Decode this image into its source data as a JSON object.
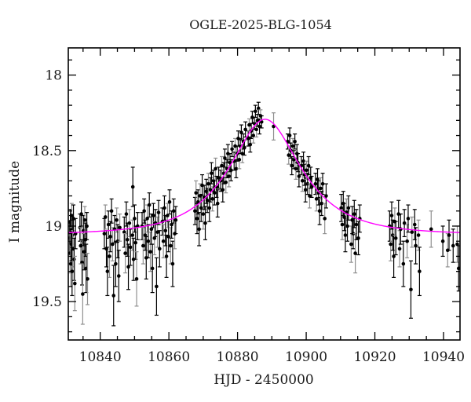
{
  "chart_data": {
    "type": "scatter",
    "title": "OGLE-2025-BLG-1054",
    "xlabel": "HJD - 2450000",
    "ylabel": "I magnitude",
    "x_range": [
      10830.7,
      10944.8
    ],
    "y_range_mag": [
      17.82,
      19.754
    ],
    "y_axis_inverted": true,
    "x_major_ticks": [
      10840,
      10860,
      10880,
      10900,
      10920,
      10940
    ],
    "x_minor_step": 5,
    "y_major_ticks": [
      18,
      18.5,
      19,
      19.5
    ],
    "y_minor_step": 0.1,
    "grid": false,
    "legend": null,
    "frame_color": "#000000",
    "marker_color": "#000000",
    "error_bar_colors": [
      "#000000",
      "#8f8f8f"
    ],
    "model_curve": {
      "type": "paczynski",
      "t0": 10888.0,
      "tE": 17.1,
      "u0": 0.55,
      "baseline_mag": 19.055,
      "peak_mag": 18.3,
      "color": "#ff00ff"
    },
    "points": [
      [
        10831.1,
        19.08,
        0.1,
        0
      ],
      [
        10831.2,
        19.18,
        0.13,
        1
      ],
      [
        10831.3,
        18.97,
        0.08,
        0
      ],
      [
        10831.4,
        19.25,
        0.15,
        1
      ],
      [
        10831.5,
        19.02,
        0.09,
        0
      ],
      [
        10831.6,
        19.12,
        0.11,
        0
      ],
      [
        10831.7,
        18.93,
        0.08,
        1
      ],
      [
        10831.8,
        19.3,
        0.16,
        0
      ],
      [
        10831.9,
        19.06,
        0.1,
        0
      ],
      [
        10832.0,
        19.15,
        0.12,
        1
      ],
      [
        10832.2,
        18.95,
        0.09,
        0
      ],
      [
        10832.4,
        19.22,
        0.14,
        0
      ],
      [
        10832.6,
        19.38,
        0.18,
        1
      ],
      [
        10832.8,
        19.05,
        0.1,
        0
      ],
      [
        10834.1,
        19.01,
        0.09,
        0
      ],
      [
        10834.3,
        19.13,
        0.12,
        1
      ],
      [
        10834.5,
        18.92,
        0.08,
        0
      ],
      [
        10834.7,
        19.24,
        0.15,
        0
      ],
      [
        10834.9,
        19.45,
        0.2,
        1
      ],
      [
        10835.1,
        19.03,
        0.1,
        0
      ],
      [
        10835.3,
        19.17,
        0.12,
        0
      ],
      [
        10835.5,
        18.96,
        0.09,
        1
      ],
      [
        10835.7,
        19.09,
        0.11,
        0
      ],
      [
        10835.9,
        19.28,
        0.16,
        0
      ],
      [
        10836.1,
        19.0,
        0.09,
        0
      ],
      [
        10836.3,
        19.35,
        0.17,
        1
      ],
      [
        10841.2,
        19.05,
        0.1,
        0
      ],
      [
        10841.5,
        18.94,
        0.08,
        1
      ],
      [
        10841.8,
        19.15,
        0.12,
        0
      ],
      [
        10842.1,
        19.3,
        0.16,
        0
      ],
      [
        10842.4,
        18.99,
        0.09,
        0
      ],
      [
        10842.7,
        19.2,
        0.14,
        1
      ],
      [
        10843.0,
        19.07,
        0.1,
        0
      ],
      [
        10843.3,
        18.9,
        0.08,
        0
      ],
      [
        10843.6,
        19.12,
        0.11,
        1
      ],
      [
        10843.9,
        19.46,
        0.2,
        0
      ],
      [
        10844.2,
        19.02,
        0.09,
        0
      ],
      [
        10844.5,
        19.25,
        0.15,
        0
      ],
      [
        10844.8,
        18.96,
        0.08,
        1
      ],
      [
        10845.1,
        19.1,
        0.11,
        0
      ],
      [
        10845.4,
        19.33,
        0.17,
        0
      ],
      [
        10845.7,
        19.01,
        0.09,
        1
      ],
      [
        10847.0,
        19.04,
        0.1,
        0
      ],
      [
        10847.3,
        19.18,
        0.13,
        1
      ],
      [
        10847.6,
        18.92,
        0.08,
        0
      ],
      [
        10847.9,
        19.09,
        0.11,
        0
      ],
      [
        10848.2,
        19.27,
        0.15,
        0
      ],
      [
        10848.5,
        18.98,
        0.09,
        1
      ],
      [
        10848.8,
        19.14,
        0.12,
        0
      ],
      [
        10849.5,
        18.74,
        0.13,
        0
      ],
      [
        10849.4,
        19.06,
        0.1,
        1
      ],
      [
        10849.7,
        19.22,
        0.14,
        0
      ],
      [
        10850.0,
        18.95,
        0.09,
        0
      ],
      [
        10850.3,
        19.11,
        0.11,
        0
      ],
      [
        10850.6,
        19.35,
        0.18,
        1
      ],
      [
        10850.9,
        19.0,
        0.09,
        0
      ],
      [
        10852.2,
        19.0,
        0.09,
        0
      ],
      [
        10852.5,
        19.13,
        0.12,
        1
      ],
      [
        10852.8,
        18.9,
        0.08,
        0
      ],
      [
        10853.1,
        19.06,
        0.1,
        0
      ],
      [
        10853.4,
        19.21,
        0.14,
        0
      ],
      [
        10853.7,
        18.95,
        0.09,
        1
      ],
      [
        10854.0,
        19.1,
        0.11,
        0
      ],
      [
        10854.3,
        18.86,
        0.08,
        0
      ],
      [
        10854.6,
        19.17,
        0.13,
        1
      ],
      [
        10854.9,
        19.02,
        0.1,
        0
      ],
      [
        10855.2,
        19.28,
        0.16,
        0
      ],
      [
        10855.5,
        18.93,
        0.08,
        0
      ],
      [
        10855.8,
        19.08,
        0.11,
        1
      ],
      [
        10856.1,
        18.98,
        0.09,
        0
      ],
      [
        10856.4,
        19.4,
        0.19,
        0
      ],
      [
        10856.7,
        19.04,
        0.1,
        1
      ],
      [
        10857.0,
        18.91,
        0.08,
        0
      ],
      [
        10857.3,
        19.15,
        0.12,
        0
      ],
      [
        10858.1,
        18.97,
        0.09,
        0
      ],
      [
        10858.4,
        19.1,
        0.11,
        1
      ],
      [
        10858.7,
        18.88,
        0.08,
        0
      ],
      [
        10859.0,
        19.03,
        0.1,
        0
      ],
      [
        10859.3,
        19.2,
        0.14,
        0
      ],
      [
        10859.6,
        18.93,
        0.08,
        1
      ],
      [
        10859.9,
        19.07,
        0.1,
        0
      ],
      [
        10860.2,
        18.84,
        0.08,
        0
      ],
      [
        10860.5,
        19.13,
        0.12,
        1
      ],
      [
        10860.8,
        18.99,
        0.09,
        0
      ],
      [
        10861.1,
        19.25,
        0.15,
        0
      ],
      [
        10861.4,
        18.9,
        0.08,
        0
      ],
      [
        10861.7,
        19.05,
        0.1,
        1
      ],
      [
        10862.0,
        18.96,
        0.09,
        0
      ],
      [
        10867.6,
        18.9,
        0.09,
        0
      ],
      [
        10867.9,
        18.78,
        0.08,
        1
      ],
      [
        10868.2,
        18.95,
        0.1,
        0
      ],
      [
        10868.5,
        18.84,
        0.08,
        0
      ],
      [
        10868.8,
        19.02,
        0.11,
        0
      ],
      [
        10869.1,
        18.8,
        0.08,
        1
      ],
      [
        10869.4,
        18.88,
        0.09,
        0
      ],
      [
        10869.7,
        18.73,
        0.07,
        0
      ],
      [
        10870.0,
        18.92,
        0.1,
        1
      ],
      [
        10870.3,
        18.81,
        0.08,
        0
      ],
      [
        10870.6,
        18.98,
        0.11,
        0
      ],
      [
        10870.9,
        18.77,
        0.08,
        0
      ],
      [
        10871.2,
        18.83,
        0.08,
        0
      ],
      [
        10871.5,
        18.72,
        0.07,
        1
      ],
      [
        10871.8,
        18.88,
        0.09,
        0
      ],
      [
        10872.1,
        18.76,
        0.08,
        0
      ],
      [
        10872.4,
        18.65,
        0.07,
        0
      ],
      [
        10872.7,
        18.82,
        0.08,
        1
      ],
      [
        10873.0,
        18.7,
        0.07,
        0
      ],
      [
        10873.3,
        18.78,
        0.08,
        0
      ],
      [
        10873.6,
        18.62,
        0.07,
        1
      ],
      [
        10873.9,
        18.74,
        0.07,
        0
      ],
      [
        10874.2,
        18.85,
        0.09,
        0
      ],
      [
        10874.5,
        18.68,
        0.07,
        0
      ],
      [
        10875.1,
        18.7,
        0.07,
        0
      ],
      [
        10875.4,
        18.6,
        0.06,
        1
      ],
      [
        10875.7,
        18.76,
        0.08,
        0
      ],
      [
        10876.0,
        18.65,
        0.07,
        0
      ],
      [
        10876.3,
        18.55,
        0.06,
        0
      ],
      [
        10876.6,
        18.71,
        0.07,
        1
      ],
      [
        10876.9,
        18.62,
        0.06,
        0
      ],
      [
        10877.2,
        18.52,
        0.06,
        0
      ],
      [
        10877.5,
        18.67,
        0.07,
        1
      ],
      [
        10877.8,
        18.58,
        0.06,
        0
      ],
      [
        10878.1,
        18.63,
        0.07,
        0
      ],
      [
        10878.4,
        18.49,
        0.05,
        0
      ],
      [
        10879.0,
        18.57,
        0.06,
        0
      ],
      [
        10879.3,
        18.47,
        0.05,
        1
      ],
      [
        10879.6,
        18.62,
        0.06,
        0
      ],
      [
        10879.9,
        18.52,
        0.05,
        0
      ],
      [
        10880.2,
        18.42,
        0.05,
        0
      ],
      [
        10880.5,
        18.56,
        0.06,
        1
      ],
      [
        10880.8,
        18.47,
        0.05,
        0
      ],
      [
        10881.1,
        18.38,
        0.05,
        0
      ],
      [
        10881.4,
        18.52,
        0.06,
        1
      ],
      [
        10881.7,
        18.44,
        0.05,
        0
      ],
      [
        10882.0,
        18.48,
        0.05,
        0
      ],
      [
        10882.3,
        18.36,
        0.05,
        0
      ],
      [
        10883.1,
        18.42,
        0.05,
        0
      ],
      [
        10883.4,
        18.33,
        0.04,
        1
      ],
      [
        10883.7,
        18.46,
        0.05,
        0
      ],
      [
        10884.0,
        18.37,
        0.05,
        0
      ],
      [
        10884.3,
        18.28,
        0.04,
        0
      ],
      [
        10884.6,
        18.4,
        0.05,
        1
      ],
      [
        10884.9,
        18.32,
        0.04,
        0
      ],
      [
        10885.2,
        18.24,
        0.04,
        0
      ],
      [
        10885.5,
        18.36,
        0.05,
        1
      ],
      [
        10885.8,
        18.3,
        0.04,
        0
      ],
      [
        10886.1,
        18.22,
        0.04,
        0
      ],
      [
        10886.4,
        18.34,
        0.05,
        0
      ],
      [
        10886.7,
        18.27,
        0.04,
        1
      ],
      [
        10887.0,
        18.31,
        0.04,
        0
      ],
      [
        10890.5,
        18.34,
        0.09,
        1
      ],
      [
        10894.6,
        18.44,
        0.05,
        0
      ],
      [
        10894.9,
        18.53,
        0.06,
        1
      ],
      [
        10895.2,
        18.4,
        0.05,
        0
      ],
      [
        10895.5,
        18.5,
        0.05,
        0
      ],
      [
        10895.8,
        18.6,
        0.06,
        0
      ],
      [
        10896.1,
        18.47,
        0.05,
        1
      ],
      [
        10896.4,
        18.56,
        0.06,
        0
      ],
      [
        10896.7,
        18.44,
        0.05,
        0
      ],
      [
        10897.0,
        18.62,
        0.07,
        1
      ],
      [
        10897.3,
        18.52,
        0.06,
        0
      ],
      [
        10897.6,
        18.58,
        0.06,
        0
      ],
      [
        10897.9,
        18.67,
        0.07,
        0
      ],
      [
        10898.6,
        18.6,
        0.06,
        0
      ],
      [
        10898.9,
        18.7,
        0.07,
        1
      ],
      [
        10899.2,
        18.57,
        0.06,
        0
      ],
      [
        10899.5,
        18.66,
        0.07,
        0
      ],
      [
        10899.8,
        18.76,
        0.08,
        0
      ],
      [
        10900.1,
        18.63,
        0.06,
        1
      ],
      [
        10900.4,
        18.72,
        0.07,
        0
      ],
      [
        10900.7,
        18.6,
        0.06,
        0
      ],
      [
        10901.0,
        18.8,
        0.08,
        1
      ],
      [
        10901.3,
        18.68,
        0.07,
        0
      ],
      [
        10901.6,
        18.74,
        0.07,
        0
      ],
      [
        10902.7,
        18.72,
        0.07,
        0
      ],
      [
        10903.0,
        18.82,
        0.08,
        1
      ],
      [
        10903.3,
        18.69,
        0.07,
        0
      ],
      [
        10903.6,
        18.78,
        0.08,
        0
      ],
      [
        10903.9,
        18.9,
        0.09,
        0
      ],
      [
        10904.2,
        18.75,
        0.07,
        1
      ],
      [
        10904.5,
        18.85,
        0.08,
        0
      ],
      [
        10904.8,
        18.72,
        0.07,
        0
      ],
      [
        10905.4,
        18.95,
        0.1,
        1
      ],
      [
        10905.8,
        18.8,
        0.08,
        0
      ],
      [
        10910.2,
        18.88,
        0.09,
        0
      ],
      [
        10910.5,
        18.99,
        0.1,
        1
      ],
      [
        10910.8,
        18.85,
        0.08,
        0
      ],
      [
        10911.1,
        18.94,
        0.09,
        0
      ],
      [
        10911.4,
        19.06,
        0.11,
        0
      ],
      [
        10911.7,
        18.91,
        0.09,
        1
      ],
      [
        10912.0,
        19.0,
        0.1,
        0
      ],
      [
        10912.3,
        18.88,
        0.08,
        0
      ],
      [
        10913.1,
        19.12,
        0.12,
        1
      ],
      [
        10913.4,
        18.96,
        0.09,
        0
      ],
      [
        10913.7,
        19.05,
        0.1,
        0
      ],
      [
        10914.0,
        18.92,
        0.09,
        0
      ],
      [
        10914.3,
        19.18,
        0.13,
        1
      ],
      [
        10914.6,
        18.99,
        0.1,
        0
      ],
      [
        10915.2,
        19.08,
        0.11,
        0
      ],
      [
        10915.6,
        18.95,
        0.09,
        0
      ],
      [
        10924.3,
        19.0,
        0.1,
        0
      ],
      [
        10924.6,
        19.12,
        0.11,
        1
      ],
      [
        10924.9,
        18.93,
        0.09,
        0
      ],
      [
        10925.2,
        19.06,
        0.1,
        0
      ],
      [
        10925.5,
        19.2,
        0.14,
        0
      ],
      [
        10925.8,
        18.97,
        0.09,
        1
      ],
      [
        10926.1,
        19.08,
        0.11,
        0
      ],
      [
        10926.9,
        18.92,
        0.09,
        0
      ],
      [
        10927.2,
        19.15,
        0.12,
        1
      ],
      [
        10927.5,
        19.02,
        0.1,
        0
      ],
      [
        10928.3,
        19.25,
        0.15,
        0
      ],
      [
        10928.6,
        18.98,
        0.09,
        0
      ],
      [
        10929.4,
        19.1,
        0.11,
        1
      ],
      [
        10929.7,
        18.95,
        0.09,
        0
      ],
      [
        10930.5,
        19.42,
        0.19,
        0
      ],
      [
        10930.8,
        19.04,
        0.1,
        1
      ],
      [
        10931.6,
        18.99,
        0.1,
        0
      ],
      [
        10931.9,
        19.13,
        0.12,
        0
      ],
      [
        10932.7,
        19.06,
        0.1,
        1
      ],
      [
        10933.0,
        19.3,
        0.16,
        0
      ],
      [
        10936.4,
        19.02,
        0.12,
        1
      ],
      [
        10939.8,
        19.1,
        0.1,
        0
      ],
      [
        10941.2,
        19.16,
        0.11,
        1
      ],
      [
        10941.6,
        19.06,
        0.1,
        0
      ],
      [
        10942.8,
        19.13,
        0.11,
        0
      ],
      [
        10944.0,
        19.12,
        0.12,
        1
      ],
      [
        10944.4,
        19.28,
        0.15,
        0
      ]
    ]
  }
}
